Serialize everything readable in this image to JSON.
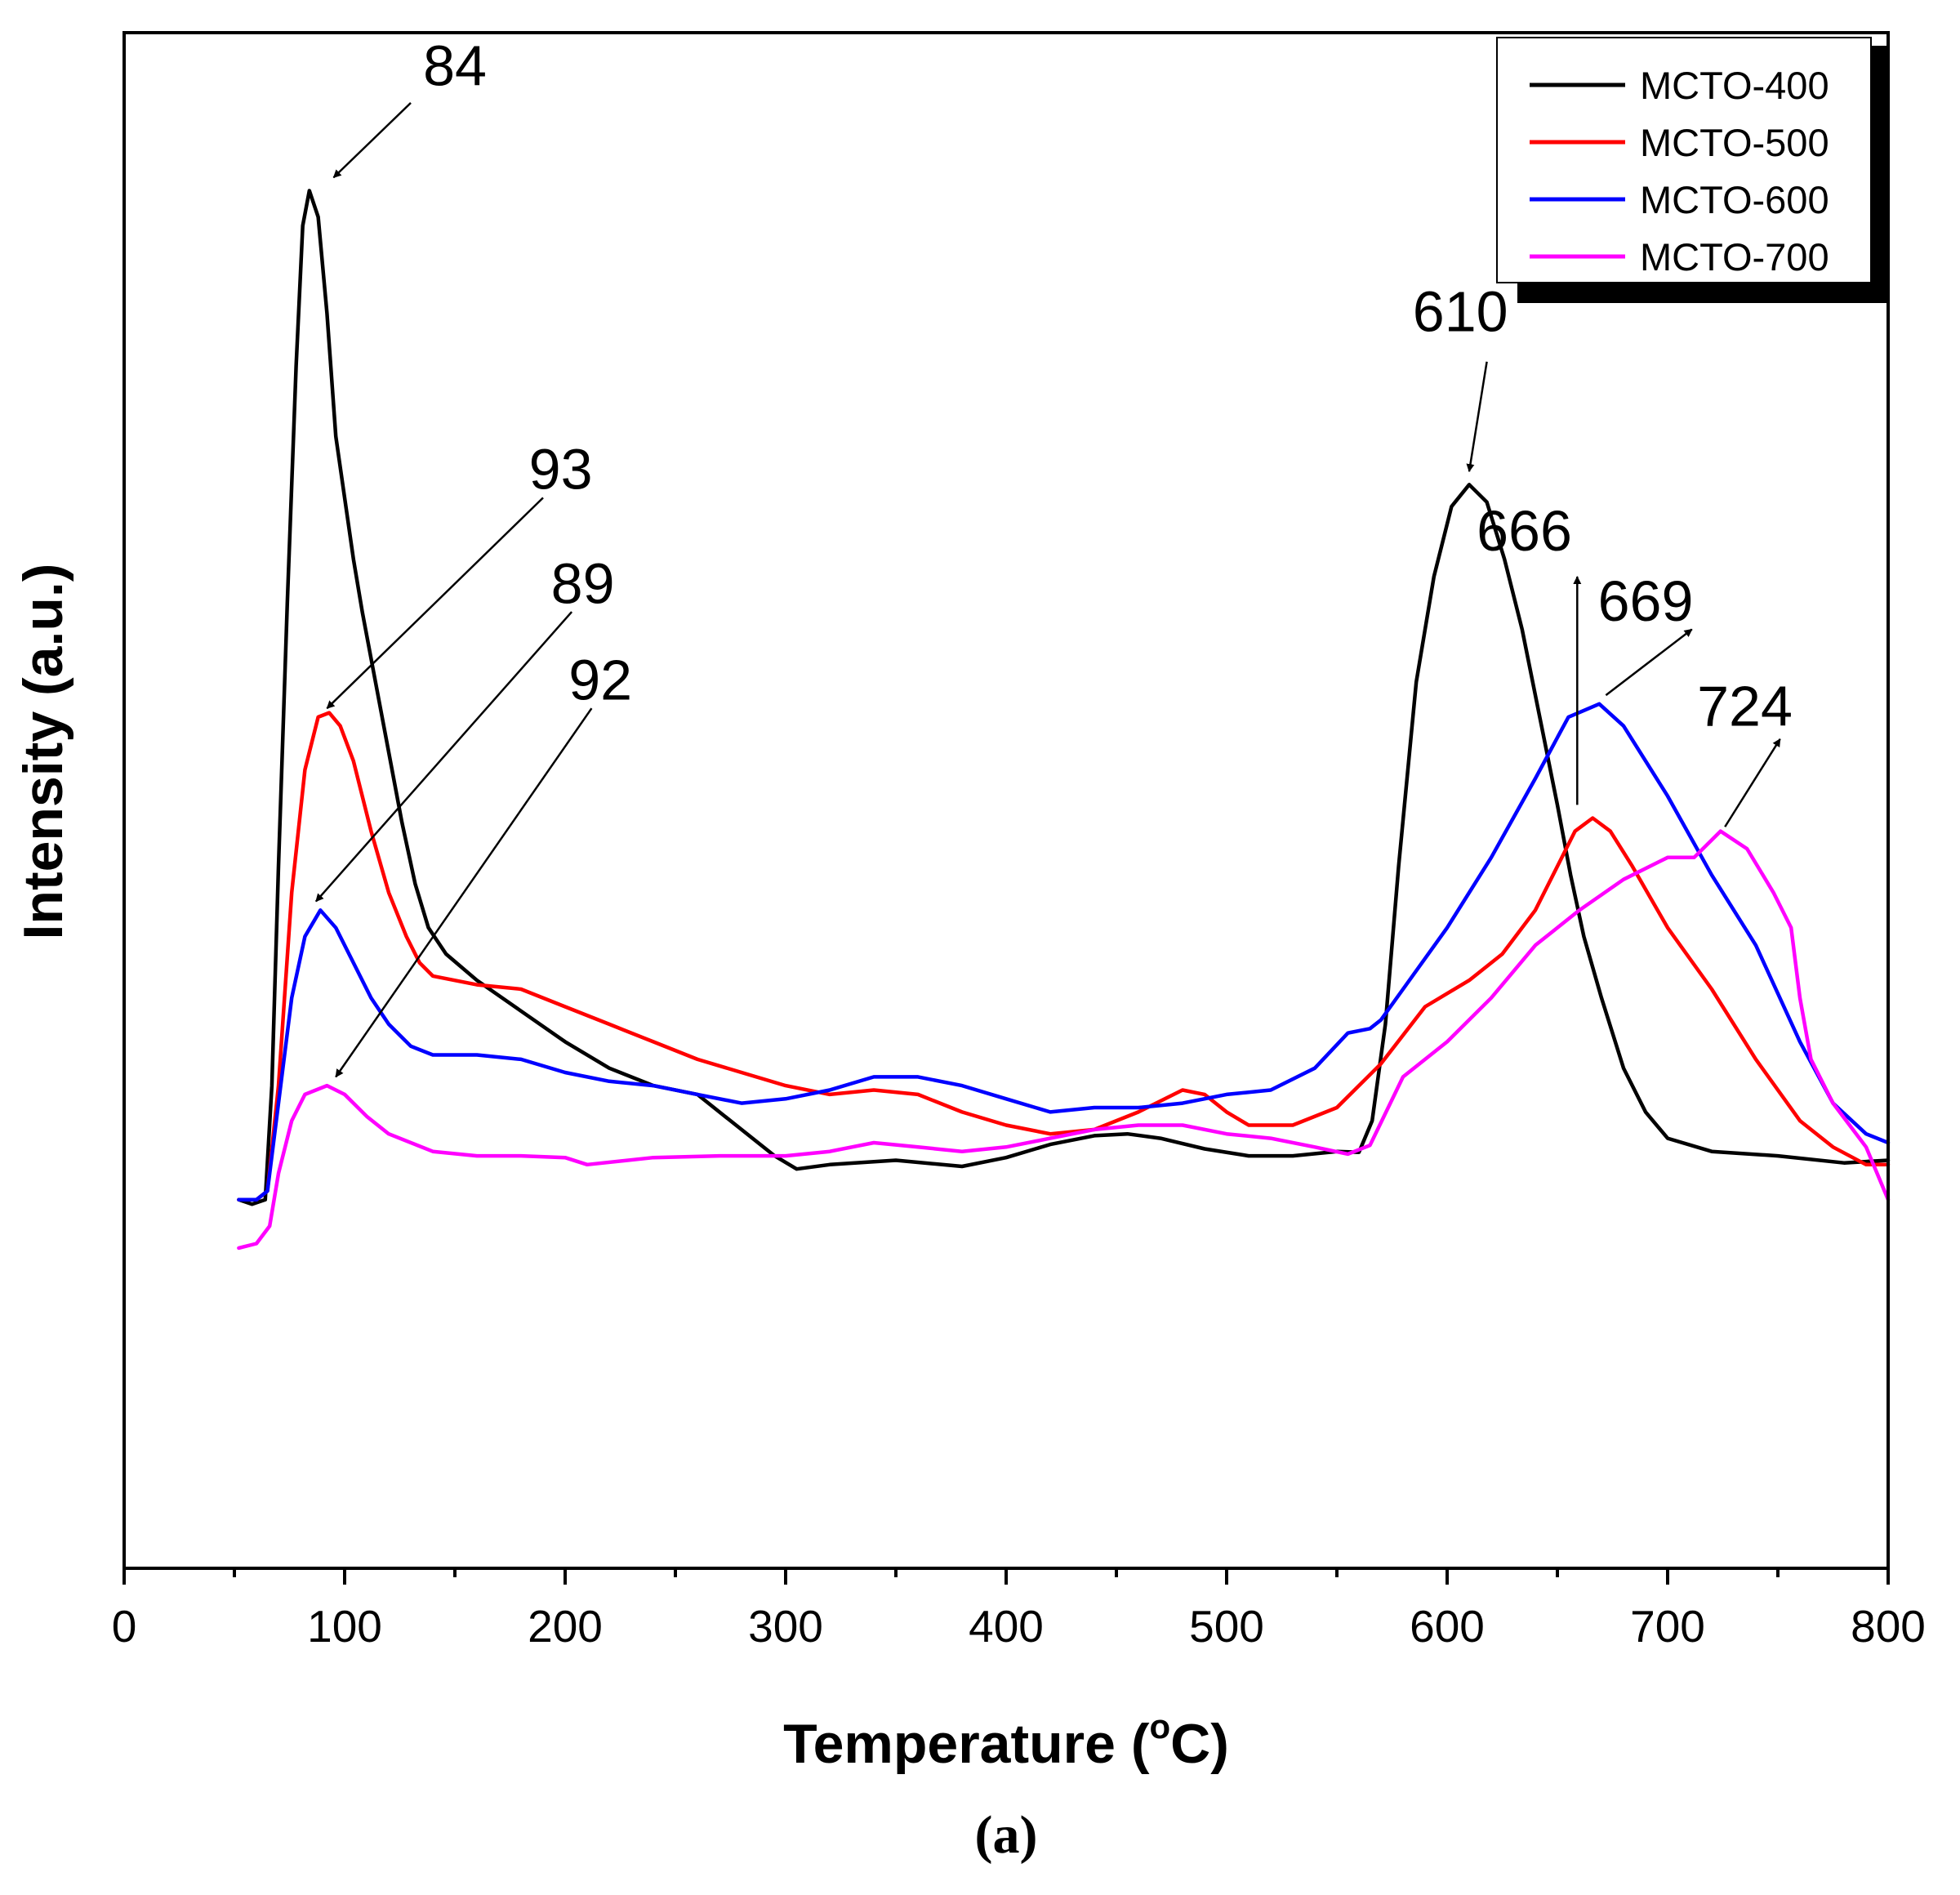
{
  "chart_data": {
    "type": "line",
    "title": "",
    "xlabel": "Temperature (",
    "xlabel_sup": "o",
    "xlabel_tail": "C)",
    "ylabel": "Intensity (a.u.)",
    "xlim": [
      0,
      800
    ],
    "ylim": [
      -0.25,
      1.5
    ],
    "xticks": [
      "0",
      "100",
      "200",
      "300",
      "400",
      "500",
      "600",
      "700",
      "800"
    ],
    "grid": false,
    "legend_position": "top-right",
    "series": [
      {
        "name": "MCTO-400",
        "color": "#000000",
        "points": [
          [
            52,
            0.17
          ],
          [
            58,
            0.165
          ],
          [
            64,
            0.17
          ],
          [
            67,
            0.3
          ],
          [
            70,
            0.55
          ],
          [
            74,
            0.85
          ],
          [
            78,
            1.12
          ],
          [
            81,
            1.28
          ],
          [
            84,
            1.32
          ],
          [
            88,
            1.29
          ],
          [
            92,
            1.18
          ],
          [
            96,
            1.04
          ],
          [
            100,
            0.97
          ],
          [
            104,
            0.9
          ],
          [
            108,
            0.84
          ],
          [
            114,
            0.76
          ],
          [
            120,
            0.68
          ],
          [
            126,
            0.6
          ],
          [
            132,
            0.53
          ],
          [
            138,
            0.48
          ],
          [
            146,
            0.45
          ],
          [
            160,
            0.42
          ],
          [
            180,
            0.385
          ],
          [
            200,
            0.35
          ],
          [
            220,
            0.32
          ],
          [
            240,
            0.3
          ],
          [
            260,
            0.29
          ],
          [
            280,
            0.25
          ],
          [
            295,
            0.22
          ],
          [
            305,
            0.205
          ],
          [
            320,
            0.21
          ],
          [
            350,
            0.215
          ],
          [
            380,
            0.208
          ],
          [
            400,
            0.218
          ],
          [
            420,
            0.233
          ],
          [
            440,
            0.243
          ],
          [
            455,
            0.245
          ],
          [
            470,
            0.24
          ],
          [
            490,
            0.228
          ],
          [
            510,
            0.22
          ],
          [
            530,
            0.22
          ],
          [
            550,
            0.225
          ],
          [
            560,
            0.224
          ],
          [
            566,
            0.26
          ],
          [
            572,
            0.37
          ],
          [
            578,
            0.55
          ],
          [
            586,
            0.76
          ],
          [
            594,
            0.88
          ],
          [
            602,
            0.96
          ],
          [
            610,
            0.985
          ],
          [
            618,
            0.965
          ],
          [
            626,
            0.9
          ],
          [
            634,
            0.82
          ],
          [
            642,
            0.72
          ],
          [
            650,
            0.62
          ],
          [
            656,
            0.54
          ],
          [
            662,
            0.47
          ],
          [
            670,
            0.4
          ],
          [
            680,
            0.32
          ],
          [
            690,
            0.27
          ],
          [
            700,
            0.24
          ],
          [
            720,
            0.225
          ],
          [
            750,
            0.22
          ],
          [
            780,
            0.212
          ],
          [
            800,
            0.215
          ]
        ]
      },
      {
        "name": "MCTO-500",
        "color": "#ff0000",
        "points": [
          [
            52,
            0.17
          ],
          [
            60,
            0.17
          ],
          [
            65,
            0.18
          ],
          [
            70,
            0.3
          ],
          [
            76,
            0.52
          ],
          [
            82,
            0.66
          ],
          [
            88,
            0.72
          ],
          [
            93,
            0.725
          ],
          [
            98,
            0.71
          ],
          [
            104,
            0.67
          ],
          [
            112,
            0.59
          ],
          [
            120,
            0.52
          ],
          [
            128,
            0.47
          ],
          [
            134,
            0.44
          ],
          [
            140,
            0.425
          ],
          [
            160,
            0.415
          ],
          [
            180,
            0.41
          ],
          [
            200,
            0.39
          ],
          [
            220,
            0.37
          ],
          [
            240,
            0.35
          ],
          [
            260,
            0.33
          ],
          [
            280,
            0.315
          ],
          [
            300,
            0.3
          ],
          [
            320,
            0.29
          ],
          [
            340,
            0.295
          ],
          [
            360,
            0.29
          ],
          [
            380,
            0.27
          ],
          [
            400,
            0.255
          ],
          [
            420,
            0.245
          ],
          [
            440,
            0.25
          ],
          [
            460,
            0.27
          ],
          [
            480,
            0.295
          ],
          [
            490,
            0.29
          ],
          [
            500,
            0.27
          ],
          [
            510,
            0.255
          ],
          [
            530,
            0.255
          ],
          [
            550,
            0.275
          ],
          [
            570,
            0.325
          ],
          [
            590,
            0.39
          ],
          [
            610,
            0.42
          ],
          [
            625,
            0.45
          ],
          [
            640,
            0.5
          ],
          [
            650,
            0.55
          ],
          [
            658,
            0.59
          ],
          [
            666,
            0.605
          ],
          [
            674,
            0.59
          ],
          [
            684,
            0.55
          ],
          [
            700,
            0.48
          ],
          [
            720,
            0.41
          ],
          [
            740,
            0.33
          ],
          [
            760,
            0.26
          ],
          [
            775,
            0.23
          ],
          [
            790,
            0.21
          ],
          [
            800,
            0.21
          ]
        ]
      },
      {
        "name": "MCTO-600",
        "color": "#0000ff",
        "points": [
          [
            52,
            0.17
          ],
          [
            60,
            0.17
          ],
          [
            65,
            0.18
          ],
          [
            70,
            0.28
          ],
          [
            76,
            0.4
          ],
          [
            82,
            0.47
          ],
          [
            89,
            0.5
          ],
          [
            96,
            0.48
          ],
          [
            104,
            0.44
          ],
          [
            112,
            0.4
          ],
          [
            120,
            0.37
          ],
          [
            130,
            0.345
          ],
          [
            140,
            0.335
          ],
          [
            160,
            0.335
          ],
          [
            180,
            0.33
          ],
          [
            200,
            0.315
          ],
          [
            220,
            0.305
          ],
          [
            240,
            0.3
          ],
          [
            260,
            0.29
          ],
          [
            280,
            0.28
          ],
          [
            300,
            0.285
          ],
          [
            320,
            0.295
          ],
          [
            340,
            0.31
          ],
          [
            360,
            0.31
          ],
          [
            380,
            0.3
          ],
          [
            400,
            0.285
          ],
          [
            420,
            0.27
          ],
          [
            440,
            0.275
          ],
          [
            460,
            0.275
          ],
          [
            480,
            0.28
          ],
          [
            500,
            0.29
          ],
          [
            520,
            0.295
          ],
          [
            540,
            0.32
          ],
          [
            555,
            0.36
          ],
          [
            565,
            0.365
          ],
          [
            570,
            0.375
          ],
          [
            580,
            0.41
          ],
          [
            600,
            0.48
          ],
          [
            620,
            0.56
          ],
          [
            640,
            0.65
          ],
          [
            655,
            0.72
          ],
          [
            669,
            0.735
          ],
          [
            680,
            0.71
          ],
          [
            700,
            0.63
          ],
          [
            720,
            0.54
          ],
          [
            740,
            0.46
          ],
          [
            760,
            0.35
          ],
          [
            775,
            0.28
          ],
          [
            790,
            0.245
          ],
          [
            800,
            0.235
          ]
        ]
      },
      {
        "name": "MCTO-700",
        "color": "#ff00ff",
        "points": [
          [
            52,
            0.115
          ],
          [
            60,
            0.12
          ],
          [
            66,
            0.14
          ],
          [
            70,
            0.2
          ],
          [
            76,
            0.26
          ],
          [
            82,
            0.29
          ],
          [
            92,
            0.3
          ],
          [
            100,
            0.29
          ],
          [
            110,
            0.265
          ],
          [
            120,
            0.245
          ],
          [
            140,
            0.225
          ],
          [
            160,
            0.22
          ],
          [
            180,
            0.22
          ],
          [
            200,
            0.218
          ],
          [
            210,
            0.21
          ],
          [
            240,
            0.218
          ],
          [
            270,
            0.22
          ],
          [
            300,
            0.22
          ],
          [
            320,
            0.225
          ],
          [
            340,
            0.235
          ],
          [
            360,
            0.23
          ],
          [
            380,
            0.225
          ],
          [
            400,
            0.23
          ],
          [
            420,
            0.24
          ],
          [
            440,
            0.25
          ],
          [
            460,
            0.255
          ],
          [
            480,
            0.255
          ],
          [
            500,
            0.245
          ],
          [
            520,
            0.24
          ],
          [
            540,
            0.23
          ],
          [
            555,
            0.222
          ],
          [
            565,
            0.232
          ],
          [
            580,
            0.31
          ],
          [
            600,
            0.35
          ],
          [
            620,
            0.4
          ],
          [
            640,
            0.46
          ],
          [
            660,
            0.5
          ],
          [
            680,
            0.535
          ],
          [
            700,
            0.56
          ],
          [
            712,
            0.56
          ],
          [
            724,
            0.59
          ],
          [
            736,
            0.57
          ],
          [
            748,
            0.52
          ],
          [
            756,
            0.48
          ],
          [
            760,
            0.4
          ],
          [
            765,
            0.33
          ],
          [
            775,
            0.28
          ],
          [
            790,
            0.23
          ],
          [
            800,
            0.17
          ]
        ]
      }
    ],
    "annotations": [
      {
        "label": "84",
        "arrow_from": [
          130,
          1.42
        ],
        "arrow_to": [
          95,
          1.335
        ],
        "text_at": [
          150,
          1.44
        ]
      },
      {
        "label": "93",
        "arrow_from": [
          190,
          0.97
        ],
        "arrow_to": [
          92,
          0.73
        ],
        "text_at": [
          198,
          0.98
        ]
      },
      {
        "label": "89",
        "arrow_from": [
          203,
          0.84
        ],
        "arrow_to": [
          87,
          0.51
        ],
        "text_at": [
          208,
          0.85
        ]
      },
      {
        "label": "92",
        "arrow_from": [
          212,
          0.73
        ],
        "arrow_to": [
          96,
          0.31
        ],
        "text_at": [
          216,
          0.74
        ]
      },
      {
        "label": "610",
        "arrow_from": [
          618,
          1.125
        ],
        "arrow_to": [
          610,
          1.0
        ],
        "text_at": [
          606,
          1.16
        ]
      },
      {
        "label": "666",
        "arrow_from": [
          659,
          0.62
        ],
        "arrow_to": [
          659,
          0.88
        ],
        "text_at": [
          635,
          0.91
        ]
      },
      {
        "label": "669",
        "arrow_from": [
          672,
          0.745
        ],
        "arrow_to": [
          711,
          0.82
        ],
        "text_at": [
          690,
          0.83
        ]
      },
      {
        "label": "724",
        "arrow_from": [
          726,
          0.595
        ],
        "arrow_to": [
          751,
          0.695
        ],
        "text_at": [
          735,
          0.71
        ]
      }
    ],
    "caption": "(a)"
  }
}
